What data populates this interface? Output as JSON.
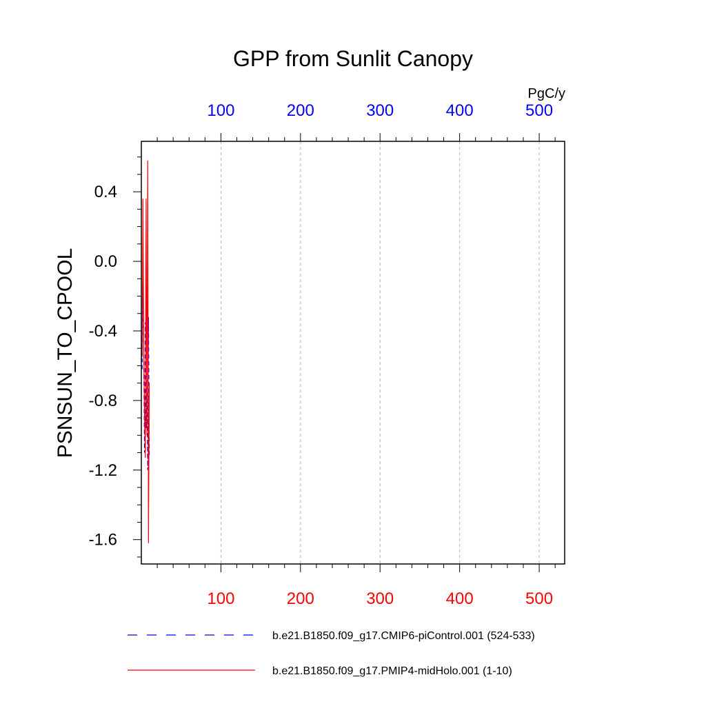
{
  "chart_data": {
    "type": "line",
    "title": "GPP from Sunlit Canopy",
    "ylabel": "PSNSUN_TO_CPOOL",
    "top_axis_unit": "PgC/y",
    "xlim": [
      0,
      532
    ],
    "ylim": [
      -1.74,
      0.69
    ],
    "x_ticks": [
      100,
      200,
      300,
      400,
      500
    ],
    "x_tick_labels": [
      "100",
      "200",
      "300",
      "400",
      "500"
    ],
    "y_ticks": [
      0.4,
      0.0,
      -0.4,
      -0.8,
      -1.2,
      -1.6
    ],
    "y_tick_labels": [
      "0.4",
      "0.0",
      "-0.4",
      "-0.8",
      "-1.2",
      "-1.6"
    ],
    "grid": "vertical dashed at x ticks",
    "legend_position": "bottom",
    "series": [
      {
        "name": "b.e21.B1850.f09_g17.CMIP6-piControl.001 (524-533)",
        "color": "#0000ff",
        "style": "dashed",
        "x": [
          1,
          2,
          3,
          4,
          5,
          6,
          7,
          8,
          9,
          10
        ],
        "y": [
          -0.62,
          -0.12,
          -0.55,
          -1.1,
          -0.35,
          -0.96,
          -0.55,
          -1.2,
          -0.32,
          -1.13
        ]
      },
      {
        "name": "b.e21.B1850.f09_g17.PMIP4-midHolo.001 (1-10)",
        "color": "#ff0000",
        "style": "solid",
        "x": [
          1,
          2,
          3,
          4,
          5,
          6,
          7,
          8,
          9,
          10
        ],
        "y": [
          -0.55,
          0.36,
          -0.5,
          -0.9,
          -1.13,
          0.36,
          -1.0,
          0.58,
          -1.62,
          -0.7
        ]
      }
    ]
  },
  "colors": {
    "top_tick_labels": "#0000ff",
    "bottom_tick_labels": "#ff0000",
    "axis": "#000000",
    "grid": "#b0b0b0"
  }
}
